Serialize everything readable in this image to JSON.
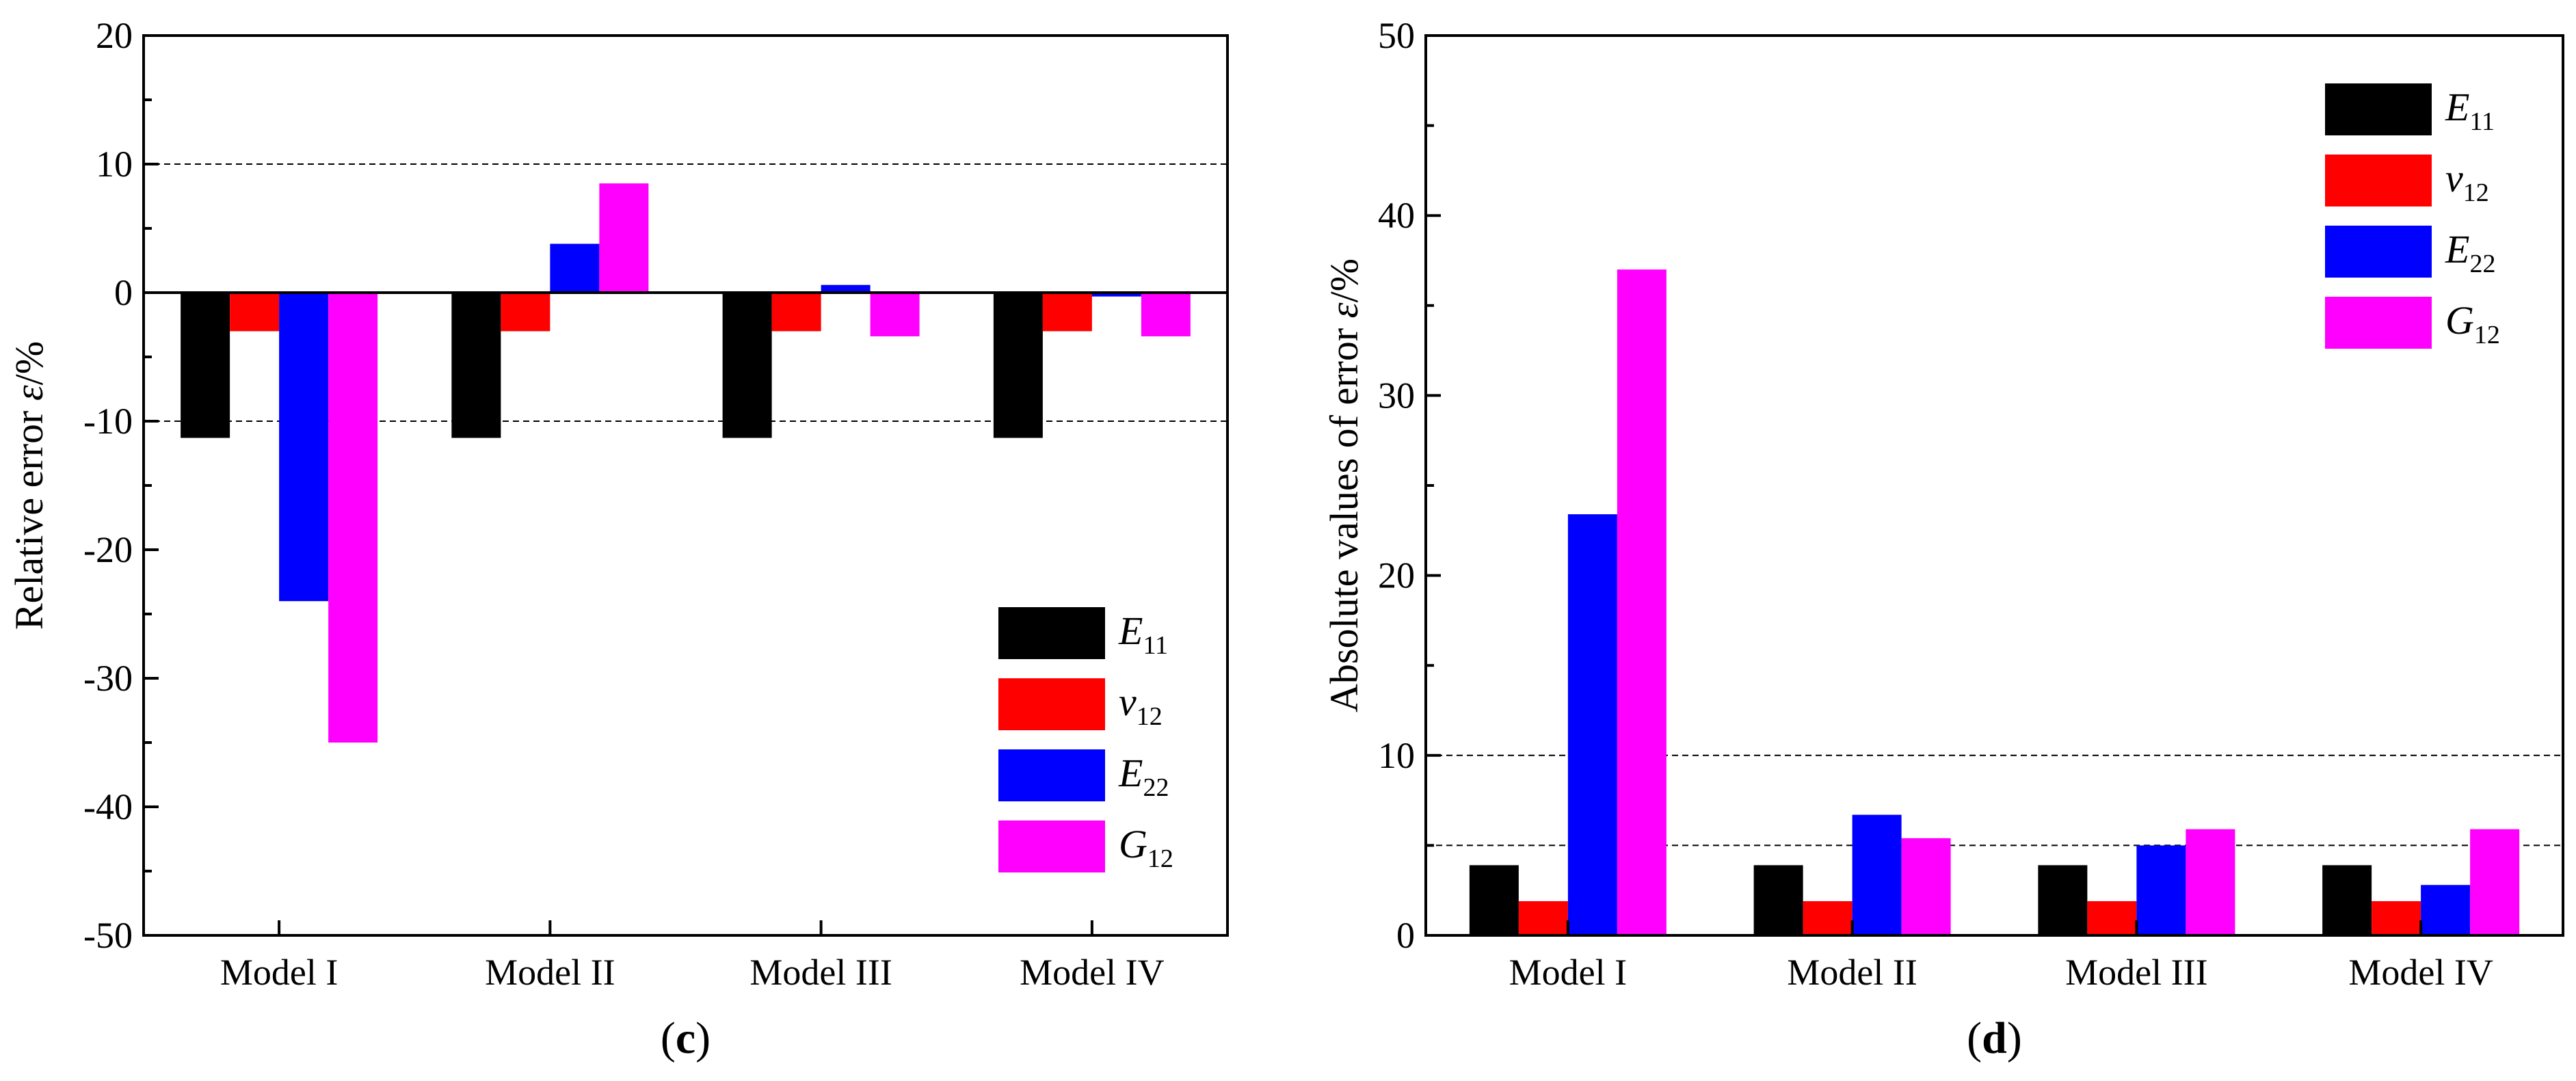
{
  "chart_data": [
    {
      "type": "bar",
      "panel_label": "c",
      "ylabel": "Relative error",
      "ylabel_symbol": "ε",
      "ylabel_unit": "/%",
      "ylim": [
        -50,
        20
      ],
      "yticks": [
        -50,
        -40,
        -30,
        -20,
        -10,
        0,
        10,
        20
      ],
      "reference_lines": [
        10,
        -10
      ],
      "grid": false,
      "legend_position": "bottom-right",
      "categories": [
        "Model I",
        "Model II",
        "Model III",
        "Model IV"
      ],
      "series": [
        {
          "name": "E",
          "subscript": "11",
          "color": "#000000",
          "values": [
            -11.3,
            -11.3,
            -11.3,
            -11.3
          ]
        },
        {
          "name": "v",
          "subscript": "12",
          "color": "#ff0000",
          "values": [
            -3.0,
            -3.0,
            -3.0,
            -3.0
          ]
        },
        {
          "name": "E",
          "subscript": "22",
          "color": "#0000ff",
          "values": [
            -24.0,
            3.8,
            0.6,
            -0.3
          ]
        },
        {
          "name": "G",
          "subscript": "12",
          "color": "#ff00ff",
          "values": [
            -35.0,
            8.5,
            -3.4,
            -3.4
          ]
        }
      ]
    },
    {
      "type": "bar",
      "panel_label": "d",
      "ylabel": "Absolute values of error",
      "ylabel_symbol": "ε",
      "ylabel_unit": "/%",
      "ylim": [
        0,
        50
      ],
      "yticks": [
        0,
        10,
        20,
        30,
        40,
        50
      ],
      "reference_lines": [
        10,
        5
      ],
      "grid": false,
      "legend_position": "top-right",
      "categories": [
        "Model I",
        "Model II",
        "Model III",
        "Model IV"
      ],
      "series": [
        {
          "name": "E",
          "subscript": "11",
          "color": "#000000",
          "values": [
            3.9,
            3.9,
            3.9,
            3.9
          ]
        },
        {
          "name": "v",
          "subscript": "12",
          "color": "#ff0000",
          "values": [
            1.9,
            1.9,
            1.9,
            1.9
          ]
        },
        {
          "name": "E",
          "subscript": "22",
          "color": "#0000ff",
          "values": [
            23.4,
            6.7,
            5.0,
            2.8
          ]
        },
        {
          "name": "G",
          "subscript": "12",
          "color": "#ff00ff",
          "values": [
            37.0,
            5.4,
            5.9,
            5.9
          ]
        }
      ]
    }
  ]
}
